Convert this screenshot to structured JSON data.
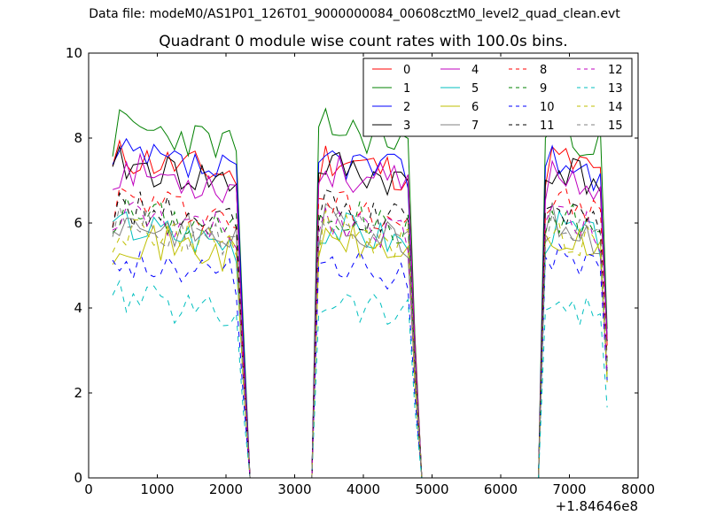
{
  "figure": {
    "suptitle": "Data file: modeM0/AS1P01_126T01_9000000084_00608cztM0_level2_quad_clean.evt",
    "title": "Quadrant 0 module wise count rates with 100.0s bins."
  },
  "chart_data": {
    "type": "line",
    "title": "Quadrant 0 module wise count rates with 100.0s bins.",
    "xlabel": "",
    "ylabel": "",
    "x_offset_label": "+1.84646e8",
    "xlim": [
      0,
      8000
    ],
    "ylim": [
      0,
      10
    ],
    "xticks": [
      0,
      1000,
      2000,
      3000,
      4000,
      5000,
      6000,
      7000,
      8000
    ],
    "yticks": [
      0,
      2,
      4,
      6,
      8,
      10
    ],
    "grid": false,
    "legend": {
      "placement": "top-right",
      "columns": 4
    },
    "x": [
      350,
      450,
      550,
      650,
      750,
      850,
      950,
      1050,
      1150,
      1250,
      1350,
      1450,
      1550,
      1650,
      1750,
      1850,
      1950,
      2050,
      2150,
      2250,
      2350,
      2450,
      2550,
      2650,
      2750,
      2850,
      2950,
      3050,
      3150,
      3250,
      3350,
      3450,
      3550,
      3650,
      3750,
      3850,
      3950,
      4050,
      4150,
      4250,
      4350,
      4450,
      4550,
      4650,
      4750,
      4850,
      4950,
      5050,
      5150,
      5250,
      5350,
      5450,
      5550,
      5650,
      5750,
      5850,
      5950,
      6050,
      6150,
      6250,
      6350,
      6450,
      6550,
      6650,
      6750,
      6850,
      6950,
      7050,
      7150,
      7250,
      7350,
      7450,
      7550
    ],
    "active_windows": [
      [
        0,
        19
      ],
      [
        30,
        44
      ],
      [
        63,
        72
      ]
    ],
    "series": [
      {
        "name": "0",
        "color": "#ff0000",
        "dash": "solid",
        "level": 7.6,
        "seed": 11
      },
      {
        "name": "1",
        "color": "#008000",
        "dash": "solid",
        "level": 8.3,
        "seed": 23
      },
      {
        "name": "2",
        "color": "#0000ff",
        "dash": "solid",
        "level": 7.6,
        "seed": 37
      },
      {
        "name": "3",
        "color": "#000000",
        "dash": "solid",
        "level": 7.4,
        "seed": 41
      },
      {
        "name": "4",
        "color": "#bf00bf",
        "dash": "solid",
        "level": 7.3,
        "seed": 53
      },
      {
        "name": "5",
        "color": "#00bfbf",
        "dash": "solid",
        "level": 6.0,
        "seed": 67
      },
      {
        "name": "6",
        "color": "#bfbf00",
        "dash": "solid",
        "level": 5.7,
        "seed": 71
      },
      {
        "name": "7",
        "color": "#808080",
        "dash": "solid",
        "level": 6.1,
        "seed": 83
      },
      {
        "name": "8",
        "color": "#ff0000",
        "dash": "dashed",
        "level": 6.6,
        "seed": 97
      },
      {
        "name": "9",
        "color": "#008000",
        "dash": "dashed",
        "level": 6.3,
        "seed": 101
      },
      {
        "name": "10",
        "color": "#0000ff",
        "dash": "dashed",
        "level": 5.2,
        "seed": 113
      },
      {
        "name": "11",
        "color": "#000000",
        "dash": "dashed",
        "level": 6.4,
        "seed": 127
      },
      {
        "name": "12",
        "color": "#bf00bf",
        "dash": "dashed",
        "level": 6.2,
        "seed": 131
      },
      {
        "name": "13",
        "color": "#00bfbf",
        "dash": "dashed",
        "level": 4.3,
        "seed": 139
      },
      {
        "name": "14",
        "color": "#bfbf00",
        "dash": "dashed",
        "level": 5.9,
        "seed": 149
      },
      {
        "name": "15",
        "color": "#808080",
        "dash": "dashed",
        "level": 6.0,
        "seed": 157
      }
    ]
  }
}
